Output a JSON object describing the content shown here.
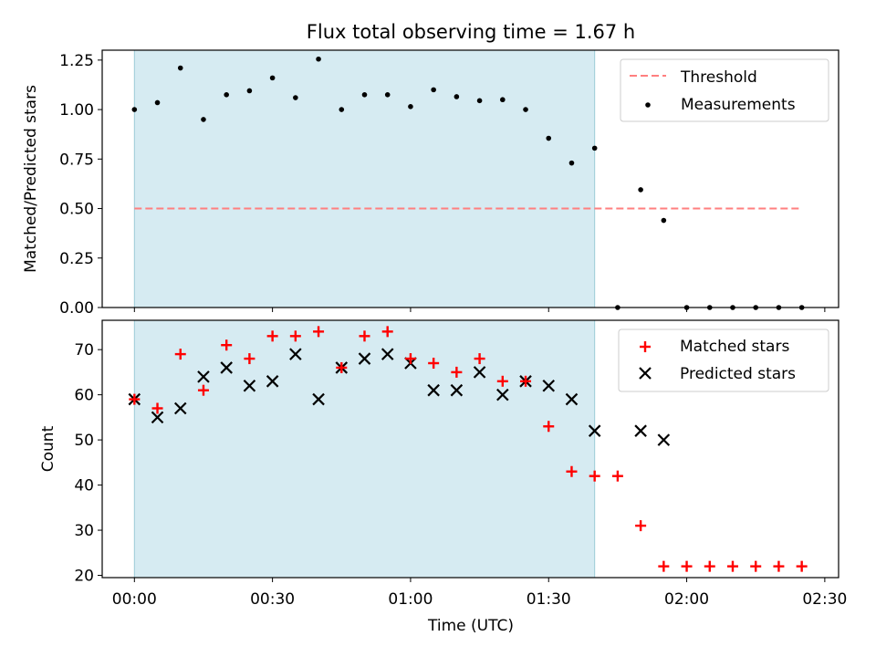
{
  "title": "Flux total observing time = 1.67 h",
  "colors": {
    "shade": "#add8e6",
    "threshold": "#ff7f7f",
    "matched": "#ff0000",
    "predicted": "#000000",
    "measurement": "#000000"
  },
  "chart_data": [
    {
      "type": "scatter",
      "title": "Flux total observing time = 1.67 h",
      "ylabel": "Matched/Predicted stars",
      "xlabel": "",
      "xlim": [
        -7,
        153
      ],
      "ylim": [
        0,
        1.3
      ],
      "yticks": [
        0,
        0.25,
        0.5,
        0.75,
        1.0,
        1.25
      ],
      "ytick_labels": [
        "0.00",
        "0.25",
        "0.50",
        "0.75",
        "1.00",
        "1.25"
      ],
      "shaded_region": [
        0,
        100
      ],
      "grid": false,
      "legend_position": "upper right",
      "threshold": {
        "name": "Threshold",
        "y": 0.5,
        "x": [
          0,
          145
        ],
        "style": "dashed"
      },
      "series": [
        {
          "name": "Measurements",
          "x": [
            0,
            5,
            10,
            15,
            20,
            25,
            30,
            35,
            40,
            45,
            50,
            55,
            60,
            65,
            70,
            75,
            80,
            85,
            90,
            95,
            100,
            105,
            110,
            115,
            120,
            125,
            130,
            135,
            140,
            145
          ],
          "y": [
            1.0,
            1.035,
            1.21,
            0.95,
            1.075,
            1.095,
            1.16,
            1.06,
            1.255,
            1.0,
            1.075,
            1.075,
            1.015,
            1.1,
            1.065,
            1.045,
            1.05,
            1.0,
            0.855,
            0.73,
            0.805,
            0.0,
            0.595,
            0.44,
            0.0,
            0.0,
            0.0,
            0.0,
            0.0,
            0.0
          ]
        }
      ]
    },
    {
      "type": "scatter",
      "ylabel": "Count",
      "xlabel": "Time (UTC)",
      "xlim": [
        -7,
        153
      ],
      "ylim": [
        19.5,
        76.5
      ],
      "yticks": [
        20,
        30,
        40,
        50,
        60,
        70
      ],
      "ytick_labels": [
        "20",
        "30",
        "40",
        "50",
        "60",
        "70"
      ],
      "xticks": [
        0,
        30,
        60,
        90,
        120,
        150
      ],
      "xtick_labels": [
        "00:00",
        "00:30",
        "01:00",
        "01:30",
        "02:00",
        "02:30"
      ],
      "shaded_region": [
        0,
        100
      ],
      "grid": false,
      "legend_position": "upper right",
      "series": [
        {
          "name": "Matched stars",
          "marker": "+",
          "x": [
            0,
            5,
            10,
            15,
            20,
            25,
            30,
            35,
            40,
            45,
            50,
            55,
            60,
            65,
            70,
            75,
            80,
            85,
            90,
            95,
            100,
            105,
            110,
            115,
            120,
            125,
            130,
            135,
            140,
            145
          ],
          "y": [
            59,
            57,
            69,
            61,
            71,
            68,
            73,
            73,
            74,
            66,
            73,
            74,
            68,
            67,
            65,
            68,
            63,
            63,
            53,
            43,
            42,
            42,
            31,
            22,
            22,
            22,
            22,
            22,
            22,
            22
          ]
        },
        {
          "name": "Predicted stars",
          "marker": "x",
          "x": [
            0,
            5,
            10,
            15,
            20,
            25,
            30,
            35,
            40,
            45,
            50,
            55,
            60,
            65,
            70,
            75,
            80,
            85,
            90,
            95,
            100,
            110,
            115
          ],
          "y": [
            59,
            55,
            57,
            64,
            66,
            62,
            63,
            69,
            59,
            66,
            68,
            69,
            67,
            61,
            61,
            65,
            60,
            63,
            62,
            59,
            52,
            52,
            50
          ]
        }
      ]
    }
  ]
}
